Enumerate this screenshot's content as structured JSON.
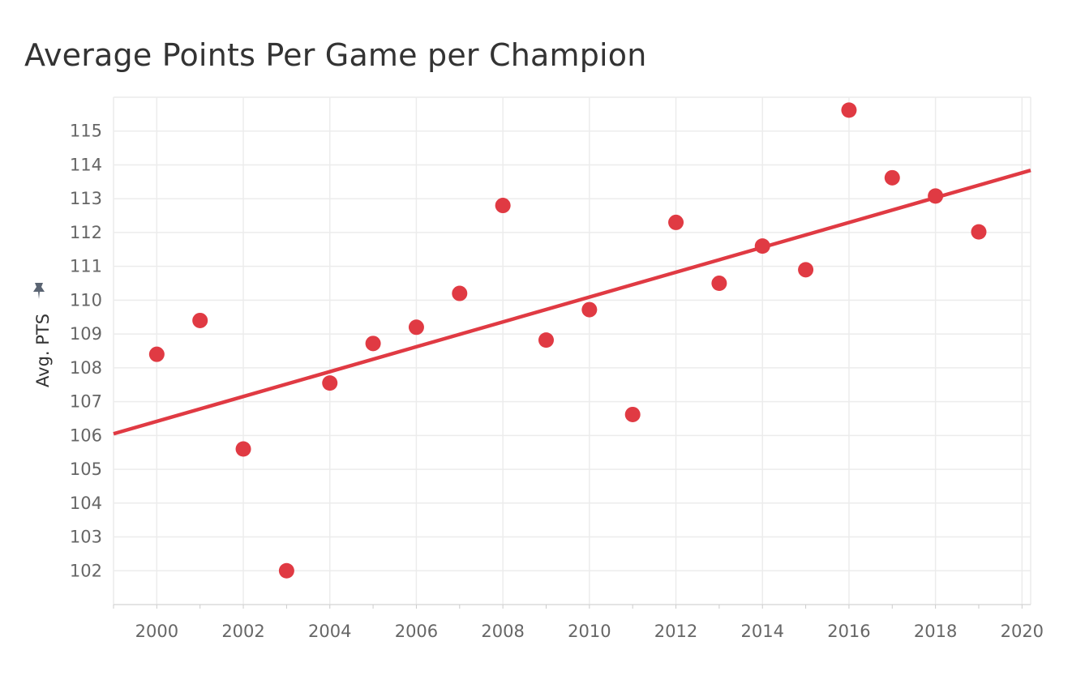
{
  "chart_data": {
    "type": "scatter",
    "title": "Average Points Per Game per Champion",
    "xlabel": "",
    "ylabel": "Avg. PTS",
    "x": [
      2000,
      2001,
      2002,
      2003,
      2004,
      2005,
      2006,
      2007,
      2008,
      2009,
      2010,
      2011,
      2012,
      2013,
      2014,
      2015,
      2016,
      2017,
      2018,
      2019
    ],
    "y": [
      108.4,
      109.4,
      105.6,
      102.0,
      107.55,
      108.72,
      109.2,
      110.2,
      112.8,
      108.82,
      109.72,
      106.62,
      112.3,
      110.5,
      111.6,
      110.9,
      115.62,
      113.62,
      113.08,
      112.02
    ],
    "trendline": {
      "type": "linear",
      "x": [
        1999,
        2020.2
      ],
      "y": [
        106.05,
        113.84
      ]
    },
    "xlim": [
      1999,
      2020.2
    ],
    "ylim": [
      101,
      116
    ],
    "xticks": [
      2000,
      2002,
      2004,
      2006,
      2008,
      2010,
      2012,
      2014,
      2016,
      2018,
      2020
    ],
    "yticks": [
      102,
      103,
      104,
      105,
      106,
      107,
      108,
      109,
      110,
      111,
      112,
      113,
      114,
      115
    ],
    "grid": true,
    "legend": "none",
    "colors": {
      "points": "#e03a43",
      "trendline": "#e03a43",
      "grid": "#ececec",
      "pin_icon": "#5a6472"
    },
    "icons": {
      "y_axis_pin": "pin-icon"
    }
  }
}
